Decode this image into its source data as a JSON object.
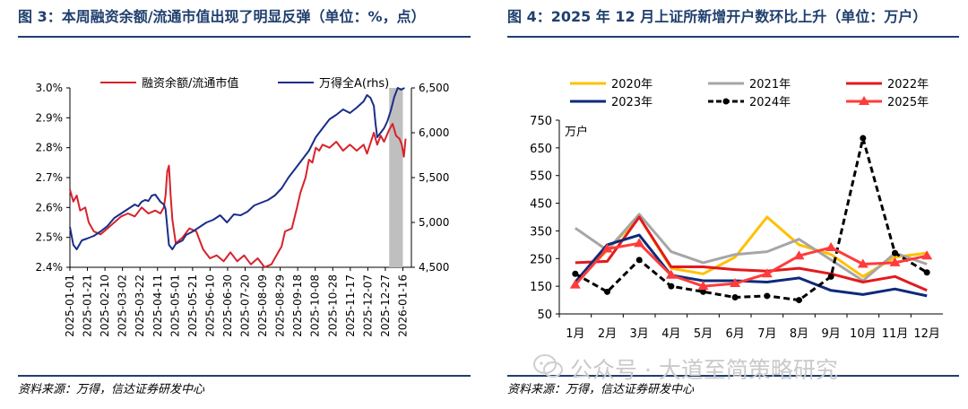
{
  "left": {
    "title": "图 3：本周融资余额/流通市值出现了明显反弹（单位：%，点）",
    "source": "资料来源：万得，信达证券研发中心",
    "chart_data": {
      "type": "line",
      "legend_position": "top",
      "x_tick_labels": [
        "2025-01-01",
        "2025-01-21",
        "2025-02-10",
        "2025-03-02",
        "2025-03-22",
        "2025-04-11",
        "2025-05-01",
        "2025-05-21",
        "2025-06-10",
        "2025-06-30",
        "2025-07-20",
        "2025-08-09",
        "2025-08-29",
        "2025-09-18",
        "2025-10-08",
        "2025-10-28",
        "2025-11-17",
        "2025-12-07",
        "2025-12-27",
        "2026-01-16"
      ],
      "x_range": [
        0,
        1
      ],
      "shaded_x_range": [
        0.935,
        0.975
      ],
      "y_left": {
        "range": [
          2.4,
          3.0
        ],
        "tick_labels": [
          "2.4%",
          "2.5%",
          "2.6%",
          "2.7%",
          "2.8%",
          "2.9%",
          "3.0%"
        ]
      },
      "y_right": {
        "range": [
          4500,
          6500
        ],
        "tick_labels": [
          "4,500",
          "5,000",
          "5,500",
          "6,000",
          "6,500"
        ]
      },
      "series": [
        {
          "name": "融资余额/流通市值",
          "axis": "left",
          "color": "#d7222b",
          "points": [
            [
              0.0,
              2.66
            ],
            [
              0.01,
              2.62
            ],
            [
              0.02,
              2.64
            ],
            [
              0.03,
              2.59
            ],
            [
              0.045,
              2.6
            ],
            [
              0.055,
              2.55
            ],
            [
              0.07,
              2.52
            ],
            [
              0.09,
              2.51
            ],
            [
              0.11,
              2.53
            ],
            [
              0.13,
              2.55
            ],
            [
              0.15,
              2.57
            ],
            [
              0.17,
              2.58
            ],
            [
              0.19,
              2.57
            ],
            [
              0.21,
              2.6
            ],
            [
              0.23,
              2.58
            ],
            [
              0.25,
              2.59
            ],
            [
              0.265,
              2.58
            ],
            [
              0.275,
              2.6
            ],
            [
              0.28,
              2.64
            ],
            [
              0.285,
              2.72
            ],
            [
              0.29,
              2.74
            ],
            [
              0.295,
              2.64
            ],
            [
              0.3,
              2.56
            ],
            [
              0.31,
              2.48
            ],
            [
              0.33,
              2.5
            ],
            [
              0.35,
              2.53
            ],
            [
              0.37,
              2.52
            ],
            [
              0.39,
              2.46
            ],
            [
              0.41,
              2.43
            ],
            [
              0.43,
              2.44
            ],
            [
              0.45,
              2.42
            ],
            [
              0.47,
              2.45
            ],
            [
              0.49,
              2.42
            ],
            [
              0.51,
              2.44
            ],
            [
              0.53,
              2.41
            ],
            [
              0.55,
              2.43
            ],
            [
              0.57,
              2.4
            ],
            [
              0.59,
              2.41
            ],
            [
              0.61,
              2.45
            ],
            [
              0.62,
              2.47
            ],
            [
              0.63,
              2.52
            ],
            [
              0.65,
              2.53
            ],
            [
              0.665,
              2.6
            ],
            [
              0.675,
              2.65
            ],
            [
              0.69,
              2.7
            ],
            [
              0.7,
              2.76
            ],
            [
              0.71,
              2.75
            ],
            [
              0.72,
              2.8
            ],
            [
              0.73,
              2.79
            ],
            [
              0.74,
              2.81
            ],
            [
              0.76,
              2.8
            ],
            [
              0.78,
              2.82
            ],
            [
              0.8,
              2.79
            ],
            [
              0.82,
              2.81
            ],
            [
              0.84,
              2.79
            ],
            [
              0.86,
              2.81
            ],
            [
              0.87,
              2.78
            ],
            [
              0.89,
              2.85
            ],
            [
              0.9,
              2.81
            ],
            [
              0.91,
              2.84
            ],
            [
              0.92,
              2.82
            ],
            [
              0.935,
              2.86
            ],
            [
              0.945,
              2.88
            ],
            [
              0.955,
              2.84
            ],
            [
              0.965,
              2.83
            ],
            [
              0.972,
              2.81
            ],
            [
              0.978,
              2.77
            ],
            [
              0.983,
              2.83
            ]
          ]
        },
        {
          "name": "万得全A(rhs)",
          "axis": "right",
          "color": "#1a2d8a",
          "points": [
            [
              0.0,
              4950
            ],
            [
              0.01,
              4750
            ],
            [
              0.02,
              4700
            ],
            [
              0.035,
              4800
            ],
            [
              0.05,
              4820
            ],
            [
              0.07,
              4850
            ],
            [
              0.09,
              4900
            ],
            [
              0.11,
              4960
            ],
            [
              0.13,
              5050
            ],
            [
              0.15,
              5100
            ],
            [
              0.17,
              5150
            ],
            [
              0.19,
              5200
            ],
            [
              0.2,
              5180
            ],
            [
              0.21,
              5230
            ],
            [
              0.22,
              5250
            ],
            [
              0.23,
              5240
            ],
            [
              0.24,
              5300
            ],
            [
              0.25,
              5310
            ],
            [
              0.265,
              5230
            ],
            [
              0.275,
              5200
            ],
            [
              0.28,
              5150
            ],
            [
              0.285,
              4950
            ],
            [
              0.29,
              4750
            ],
            [
              0.3,
              4700
            ],
            [
              0.31,
              4760
            ],
            [
              0.32,
              4780
            ],
            [
              0.33,
              4800
            ],
            [
              0.34,
              4860
            ],
            [
              0.36,
              4900
            ],
            [
              0.38,
              4950
            ],
            [
              0.4,
              5000
            ],
            [
              0.42,
              5030
            ],
            [
              0.44,
              5080
            ],
            [
              0.46,
              5000
            ],
            [
              0.48,
              5090
            ],
            [
              0.5,
              5080
            ],
            [
              0.52,
              5120
            ],
            [
              0.54,
              5190
            ],
            [
              0.56,
              5220
            ],
            [
              0.58,
              5250
            ],
            [
              0.6,
              5300
            ],
            [
              0.62,
              5380
            ],
            [
              0.64,
              5500
            ],
            [
              0.66,
              5600
            ],
            [
              0.68,
              5700
            ],
            [
              0.7,
              5800
            ],
            [
              0.72,
              5950
            ],
            [
              0.74,
              6050
            ],
            [
              0.76,
              6150
            ],
            [
              0.78,
              6200
            ],
            [
              0.8,
              6260
            ],
            [
              0.82,
              6220
            ],
            [
              0.84,
              6280
            ],
            [
              0.86,
              6350
            ],
            [
              0.87,
              6420
            ],
            [
              0.88,
              6390
            ],
            [
              0.89,
              6300
            ],
            [
              0.895,
              6100
            ],
            [
              0.9,
              5950
            ],
            [
              0.91,
              6000
            ],
            [
              0.92,
              6050
            ],
            [
              0.93,
              6130
            ],
            [
              0.94,
              6250
            ],
            [
              0.95,
              6400
            ],
            [
              0.96,
              6500
            ],
            [
              0.97,
              6480
            ],
            [
              0.98,
              6500
            ]
          ]
        }
      ]
    }
  },
  "right": {
    "title": "图 4：2025 年 12 月上证所新增开户数环比上升（单位：万户）",
    "source": "资料来源：万得，信达证券研发中心",
    "watermark": "公众号 · 大道至简策略研究",
    "chart_data": {
      "type": "line",
      "unit_label": "万户",
      "categories": [
        "1月",
        "2月",
        "3月",
        "4月",
        "5月",
        "6月",
        "7月",
        "8月",
        "9月",
        "10月",
        "11月",
        "12月"
      ],
      "y_range": [
        50,
        750
      ],
      "y_ticks": [
        50,
        150,
        250,
        350,
        450,
        550,
        650,
        750
      ],
      "legend_position": "top",
      "series": [
        {
          "name": "2020年",
          "color": "#ffc000",
          "marker": "none",
          "values": [
            165,
            280,
            400,
            215,
            195,
            255,
            400,
            300,
            265,
            185,
            255,
            270
          ]
        },
        {
          "name": "2021年",
          "color": "#a6a6a6",
          "marker": "none",
          "values": [
            360,
            280,
            410,
            275,
            235,
            265,
            275,
            320,
            245,
            170,
            270,
            230
          ]
        },
        {
          "name": "2022年",
          "color": "#e31a1c",
          "marker": "none",
          "values": [
            235,
            240,
            400,
            220,
            220,
            210,
            205,
            215,
            195,
            165,
            185,
            135
          ]
        },
        {
          "name": "2023年",
          "color": "#0d2a7a",
          "marker": "none",
          "values": [
            165,
            300,
            335,
            190,
            170,
            170,
            165,
            180,
            135,
            120,
            140,
            115
          ]
        },
        {
          "name": "2024年",
          "color": "#000000",
          "marker": "circle",
          "values": [
            195,
            130,
            245,
            150,
            130,
            110,
            115,
            100,
            185,
            685,
            270,
            200
          ]
        },
        {
          "name": "2025年",
          "color": "#ff3b3b",
          "marker": "triangle",
          "values": [
            155,
            285,
            305,
            190,
            150,
            160,
            195,
            260,
            290,
            230,
            235,
            260
          ]
        }
      ]
    }
  }
}
